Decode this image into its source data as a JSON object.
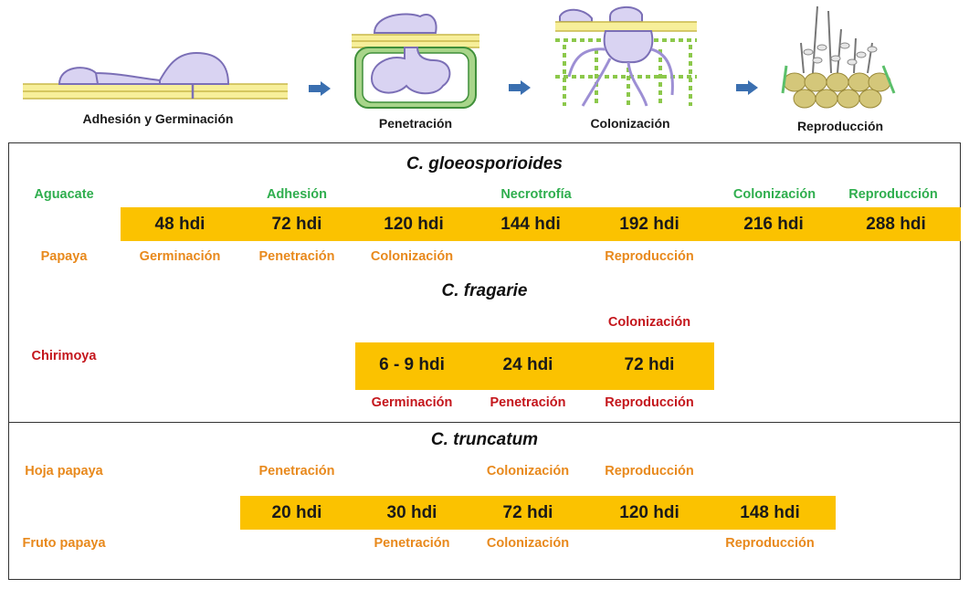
{
  "stages": [
    {
      "label": "Adhesión y Germinación"
    },
    {
      "label": "Penetración"
    },
    {
      "label": "Colonización"
    },
    {
      "label": "Reproducción"
    }
  ],
  "panels": {
    "gloeosporioides": {
      "species": "C. gloeosporioides",
      "host_top": "Aguacate",
      "host_bottom": "Papaya",
      "times": [
        "48 hdi",
        "72 hdi",
        "120 hdi",
        "144 hdi",
        "192 hdi",
        "216 hdi",
        "288 hdi"
      ],
      "top_labels": [
        "Adhesión",
        "Necrotrofía",
        "Colonización",
        "Reproducción"
      ],
      "bottom_labels": [
        "Germinación",
        "Penetración",
        "Colonización",
        "Reproducción"
      ]
    },
    "fragarie": {
      "species": "C. fragarie",
      "host": "Chirimoya",
      "times": [
        "6 - 9 hdi",
        "24 hdi",
        "72 hdi"
      ],
      "top_labels": [
        "Colonización"
      ],
      "bottom_labels": [
        "Germinación",
        "Penetración",
        "Reproducción"
      ]
    },
    "truncatum": {
      "species": "C. truncatum",
      "host_top": "Hoja papaya",
      "host_bottom": "Fruto papaya",
      "times": [
        "20 hdi",
        "30 hdi",
        "72 hdi",
        "120 hdi",
        "148 hdi"
      ],
      "top_labels": [
        "Penetración",
        "Colonización",
        "Reproducción"
      ],
      "bottom_labels": [
        "Penetración",
        "Colonización",
        "Reproducción"
      ]
    }
  },
  "colors": {
    "bar": "#fbc200",
    "green": "#2fae4e",
    "orange": "#e8891c",
    "red": "#c4161c",
    "arrow": "#3a6fb0"
  }
}
